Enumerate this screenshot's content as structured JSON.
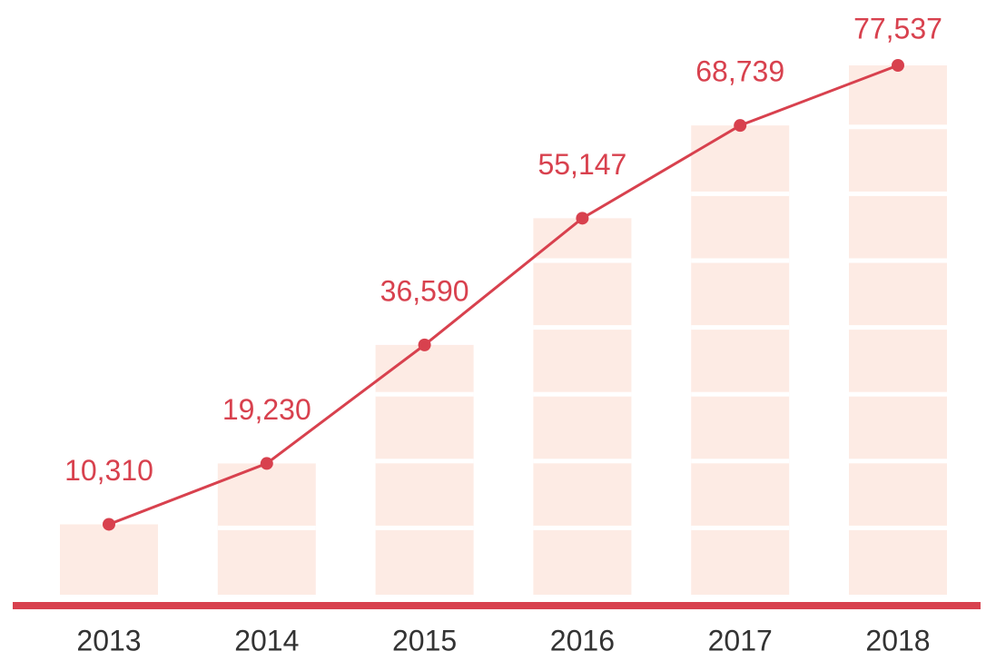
{
  "chart_data": {
    "type": "bar-line",
    "categories": [
      "2013",
      "2014",
      "2015",
      "2016",
      "2017",
      "2018"
    ],
    "values": [
      10310,
      19230,
      36590,
      55147,
      68739,
      77537
    ],
    "value_labels": [
      "10,310",
      "19,230",
      "36,590",
      "55,147",
      "68,739",
      "77,537"
    ],
    "color": "#d8414e",
    "bar_color": "#fdebe4"
  }
}
